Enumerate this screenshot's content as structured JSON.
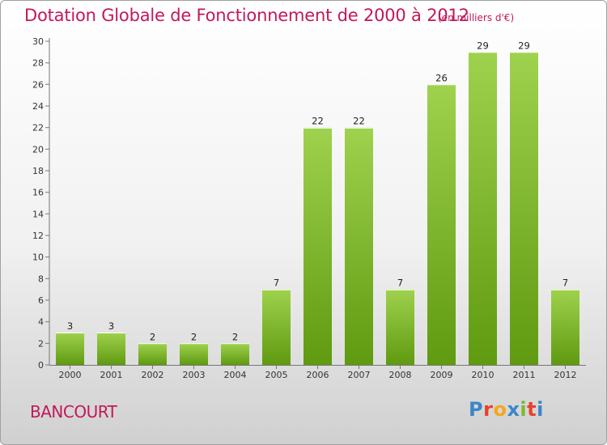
{
  "header": {
    "title": "Dotation Globale de Fonctionnement de 2000 à 2012",
    "subtitle": "(en milliers d'€)"
  },
  "footer": {
    "commune": "BANCOURT",
    "logo_text": "Proxiti",
    "logo_colors": [
      "#3a86c8",
      "#e8412c",
      "#f4a71d",
      "#3a86c8",
      "#7cb92c",
      "#e8412c",
      "#3a86c8"
    ]
  },
  "chart_data": {
    "type": "bar",
    "categories": [
      "2000",
      "2001",
      "2002",
      "2003",
      "2004",
      "2005",
      "2006",
      "2007",
      "2008",
      "2009",
      "2010",
      "2011",
      "2012"
    ],
    "values": [
      3,
      3,
      2,
      2,
      2,
      7,
      22,
      22,
      7,
      26,
      29,
      29,
      7
    ],
    "ylim": [
      0,
      30
    ],
    "yticks": [
      0,
      2,
      4,
      6,
      8,
      10,
      12,
      14,
      16,
      18,
      20,
      22,
      24,
      26,
      28,
      30
    ],
    "grid": false,
    "colors": {
      "bar_light": "#9fd24e",
      "bar_dark": "#5f9a10",
      "axis": "#777777"
    }
  }
}
